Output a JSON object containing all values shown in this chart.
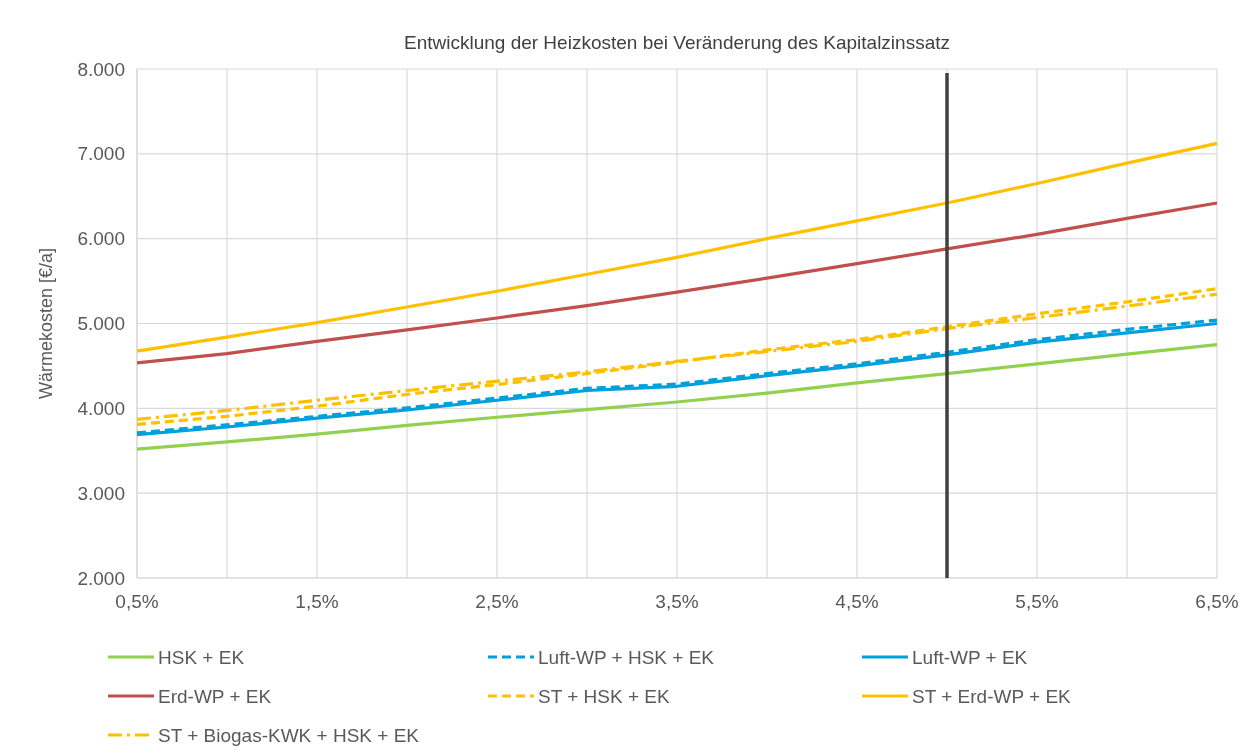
{
  "chart_data": {
    "type": "line",
    "title": "Entwicklung der Heizkosten bei Veränderung des Kapitalzinssatz",
    "ylabel": "Wärmekosten [€/a]",
    "x": [
      0.5,
      1,
      1.5,
      2,
      2.5,
      3,
      3.5,
      4,
      4.5,
      5,
      5.5,
      6,
      6.5
    ],
    "xlim": [
      0.5,
      6.5
    ],
    "xticks": [
      {
        "value": 0.5,
        "label": "0,5%"
      },
      {
        "value": 1,
        "label": null
      },
      {
        "value": 1.5,
        "label": "1,5%"
      },
      {
        "value": 2,
        "label": null
      },
      {
        "value": 2.5,
        "label": "2,5%"
      },
      {
        "value": 3,
        "label": null
      },
      {
        "value": 3.5,
        "label": "3,5%"
      },
      {
        "value": 4,
        "label": null
      },
      {
        "value": 4.5,
        "label": "4,5%"
      },
      {
        "value": 5,
        "label": null
      },
      {
        "value": 5.5,
        "label": "5,5%"
      },
      {
        "value": 6,
        "label": null
      },
      {
        "value": 6.5,
        "label": "6,5%"
      }
    ],
    "ylim": [
      2000,
      8000
    ],
    "yticks": [
      {
        "value": 2000,
        "label": "2.000"
      },
      {
        "value": 3000,
        "label": "3.000"
      },
      {
        "value": 4000,
        "label": "4.000"
      },
      {
        "value": 5000,
        "label": "5.000"
      },
      {
        "value": 6000,
        "label": "6.000"
      },
      {
        "value": 7000,
        "label": "7.000"
      },
      {
        "value": 8000,
        "label": "8.000"
      }
    ],
    "grid": true,
    "legend": "bottom",
    "marker": "none",
    "ref_lines": [
      {
        "axis": "x",
        "value": 5,
        "color": "#404040"
      }
    ],
    "series": [
      {
        "name": "HSK + EK",
        "color": "#92d050",
        "line_style": "solid",
        "values": [
          3520,
          3605,
          3695,
          3800,
          3895,
          3985,
          4075,
          4180,
          4300,
          4410,
          4525,
          4640,
          4750
        ]
      },
      {
        "name": "Luft-WP + HSK + EK",
        "color": "#00a0dc",
        "line_style": "dashed",
        "values": [
          3710,
          3805,
          3905,
          4005,
          4120,
          4235,
          4285,
          4410,
          4525,
          4660,
          4810,
          4930,
          5040
        ]
      },
      {
        "name": "Luft-WP + EK",
        "color": "#00a0dc",
        "line_style": "solid",
        "values": [
          3690,
          3780,
          3885,
          3980,
          4095,
          4210,
          4260,
          4385,
          4500,
          4630,
          4780,
          4890,
          5000
        ]
      },
      {
        "name": "Erd-WP + EK",
        "color": "#c0504d",
        "line_style": "solid",
        "values": [
          4535,
          4645,
          4790,
          4925,
          5065,
          5210,
          5370,
          5535,
          5705,
          5880,
          6050,
          6240,
          6420
        ]
      },
      {
        "name": "ST + HSK + EK",
        "color": "#ffc000",
        "line_style": "dashed",
        "values": [
          3810,
          3905,
          4025,
          4165,
          4280,
          4410,
          4545,
          4690,
          4810,
          4960,
          5115,
          5255,
          5410
        ]
      },
      {
        "name": "ST + Erd-WP + EK",
        "color": "#ffc000",
        "line_style": "solid",
        "values": [
          4675,
          4840,
          5010,
          5195,
          5380,
          5580,
          5780,
          6000,
          6210,
          6420,
          6650,
          6890,
          7123
        ]
      },
      {
        "name": "ST + Biogas-KWK + HSK + EK",
        "color": "#ffc000",
        "line_style": "dashdot",
        "values": [
          3870,
          3975,
          4095,
          4210,
          4320,
          4430,
          4555,
          4670,
          4790,
          4940,
          5070,
          5205,
          5345
        ]
      }
    ]
  }
}
